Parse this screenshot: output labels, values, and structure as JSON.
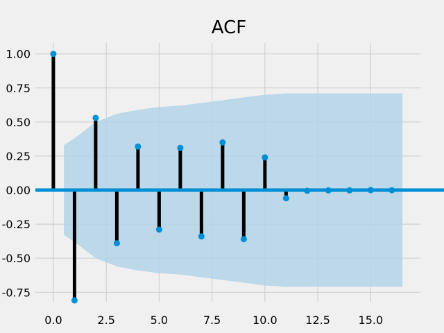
{
  "chart_data": {
    "type": "stem",
    "title": "ACF",
    "xlabel": "",
    "ylabel": "",
    "xlim": [
      -0.85,
      17.35
    ],
    "ylim": [
      -0.82,
      1.08
    ],
    "x_ticks": [
      0.0,
      2.5,
      5.0,
      7.5,
      10.0,
      12.5,
      15.0
    ],
    "x_tick_labels": [
      "0.0",
      "2.5",
      "5.0",
      "7.5",
      "10.0",
      "12.5",
      "15.0"
    ],
    "y_ticks": [
      1.0,
      0.75,
      0.5,
      0.25,
      0.0,
      -0.25,
      -0.5,
      -0.75
    ],
    "y_tick_labels": [
      "1.00",
      "0.75",
      "0.50",
      "0.25",
      "0.00",
      "-0.25",
      "-0.50",
      "-0.75"
    ],
    "grid": true,
    "series": [
      {
        "x": [
          0,
          1,
          2,
          3,
          4,
          5,
          6,
          7,
          8,
          9,
          10,
          11,
          12,
          13,
          14,
          15,
          16
        ],
        "values": [
          1.0,
          -0.81,
          0.53,
          -0.39,
          0.32,
          -0.29,
          0.31,
          -0.34,
          0.35,
          -0.36,
          0.24,
          -0.06,
          -0.005,
          -0.002,
          -0.002,
          0.0,
          -0.001
        ]
      }
    ],
    "confidence_band": {
      "x": [
        0.5,
        1,
        2,
        3,
        4,
        5,
        6,
        7,
        8,
        9,
        10,
        11,
        12,
        13,
        14,
        15,
        16,
        16.5
      ],
      "upper": [
        0.33,
        0.38,
        0.5,
        0.56,
        0.59,
        0.61,
        0.62,
        0.64,
        0.66,
        0.68,
        0.7,
        0.71,
        0.71,
        0.71,
        0.71,
        0.71,
        0.71,
        0.71
      ]
    },
    "colors": {
      "background": "#f0f0f0",
      "grid": "#cbcbcb",
      "stem": "#000000",
      "marker": "#008fd5",
      "zero_line": "#008fd5",
      "band": "#b3d4e8"
    }
  }
}
